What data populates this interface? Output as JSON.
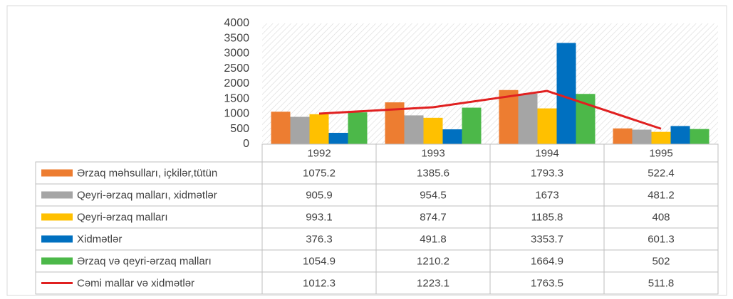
{
  "chart_data": {
    "type": "bar",
    "categories": [
      "1992",
      "1993",
      "1994",
      "1995"
    ],
    "ylim": [
      0,
      4000
    ],
    "yticks": [
      0,
      500,
      1000,
      1500,
      2000,
      2500,
      3000,
      3500,
      4000
    ],
    "series": [
      {
        "name": "Ərzaq məhsulları,  içkilər,tütün",
        "color": "#ed7d31",
        "values": [
          1075.2,
          1385.6,
          1793.3,
          522.4
        ]
      },
      {
        "name": "Qeyri-ərzaq malları, xidmətlər",
        "color": "#a5a5a5",
        "values": [
          905.9,
          954.5,
          1673,
          481.2
        ]
      },
      {
        "name": "Qeyri-ərzaq malları",
        "color": "#ffc000",
        "values": [
          993.1,
          874.7,
          1185.8,
          408
        ]
      },
      {
        "name": "Xidmətlər",
        "color": "#0070c0",
        "values": [
          376.3,
          491.8,
          3353.7,
          601.3
        ]
      },
      {
        "name": "Ərzaq və qeyri-ərzaq malları",
        "color": "#4cb849",
        "values": [
          1054.9,
          1210.2,
          1664.9,
          502
        ]
      },
      {
        "name": "Cəmi mallar və xidmətlər",
        "color": "#e02020",
        "type": "line",
        "values": [
          1012.3,
          1223.1,
          1763.5,
          511.8
        ]
      }
    ]
  }
}
